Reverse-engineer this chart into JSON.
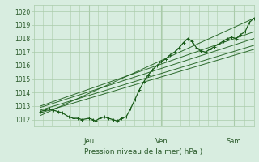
{
  "xlabel": "Pression niveau de la mer( hPa )",
  "ylim": [
    1011.5,
    1020.5
  ],
  "yticks": [
    1012,
    1013,
    1014,
    1015,
    1016,
    1017,
    1018,
    1019,
    1020
  ],
  "day_labels": [
    "Jeu",
    "Ven",
    "Sam"
  ],
  "day_positions": [
    0.25,
    0.58,
    0.91
  ],
  "bg_color": "#d8ede0",
  "grid_color": "#aacbaa",
  "line_color": "#1a5c1a",
  "text_color": "#2a5a2a",
  "main_data_x": [
    0.03,
    0.05,
    0.07,
    0.09,
    0.11,
    0.13,
    0.16,
    0.18,
    0.2,
    0.22,
    0.25,
    0.27,
    0.28,
    0.3,
    0.32,
    0.34,
    0.36,
    0.38,
    0.4,
    0.42,
    0.44,
    0.46,
    0.48,
    0.5,
    0.52,
    0.54,
    0.56,
    0.58,
    0.6,
    0.62,
    0.64,
    0.66,
    0.68,
    0.7,
    0.72,
    0.74,
    0.76,
    0.78,
    0.8,
    0.82,
    0.84,
    0.86,
    0.88,
    0.9,
    0.92,
    0.94,
    0.96,
    0.98,
    1.0
  ],
  "main_data_y": [
    1012.6,
    1012.7,
    1012.8,
    1012.7,
    1012.6,
    1012.5,
    1012.2,
    1012.1,
    1012.1,
    1012.0,
    1012.1,
    1012.0,
    1011.9,
    1012.1,
    1012.2,
    1012.1,
    1012.0,
    1011.9,
    1012.1,
    1012.2,
    1012.8,
    1013.5,
    1014.2,
    1014.8,
    1015.3,
    1015.7,
    1016.0,
    1016.3,
    1016.5,
    1016.8,
    1017.0,
    1017.3,
    1017.7,
    1018.0,
    1017.8,
    1017.3,
    1017.1,
    1017.0,
    1017.2,
    1017.4,
    1017.6,
    1017.8,
    1018.0,
    1018.1,
    1018.0,
    1018.3,
    1018.5,
    1019.2,
    1019.5
  ],
  "trend_lines": [
    {
      "x": [
        0.03,
        1.0
      ],
      "y": [
        1012.5,
        1017.2
      ]
    },
    {
      "x": [
        0.03,
        1.0
      ],
      "y": [
        1012.7,
        1017.5
      ]
    },
    {
      "x": [
        0.03,
        1.0
      ],
      "y": [
        1012.9,
        1018.0
      ]
    },
    {
      "x": [
        0.03,
        1.0
      ],
      "y": [
        1013.0,
        1018.5
      ]
    },
    {
      "x": [
        0.03,
        1.0
      ],
      "y": [
        1012.3,
        1019.5
      ]
    }
  ]
}
